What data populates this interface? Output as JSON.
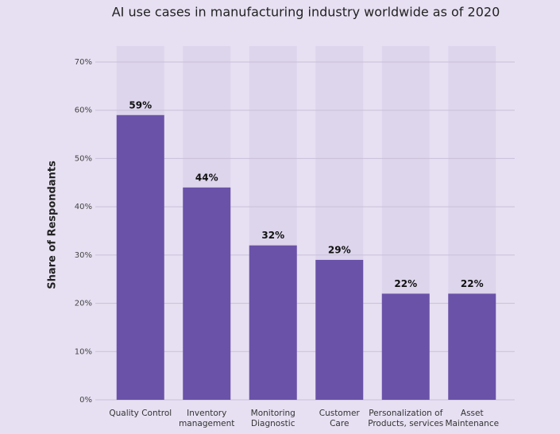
{
  "chart_data": {
    "type": "bar",
    "title": "AI use cases in manufacturing industry worldwide as of 2020",
    "y_label": "Share of Respondants",
    "categories": [
      "Quality Control",
      "Inventory\nmanagement",
      "Monitoring\nDiagnostic",
      "Customer\nCare",
      "Personalization of\nProducts, services",
      "Asset\nMaintenance"
    ],
    "values": [
      59,
      44,
      32,
      29,
      22,
      22
    ],
    "value_labels": [
      "59%",
      "44%",
      "32%",
      "29%",
      "22%",
      "22%"
    ],
    "color": "#6a52a9",
    "ylim": [
      0,
      70
    ],
    "yticks": [
      {
        "value": 0,
        "label": "0%"
      },
      {
        "value": 10,
        "label": "10%"
      },
      {
        "value": 20,
        "label": "20%"
      },
      {
        "value": 30,
        "label": "30%"
      },
      {
        "value": 40,
        "label": "40%"
      },
      {
        "value": 50,
        "label": "50%"
      },
      {
        "value": 60,
        "label": "60%"
      },
      {
        "value": 70,
        "label": "70%"
      }
    ],
    "grid": true
  }
}
